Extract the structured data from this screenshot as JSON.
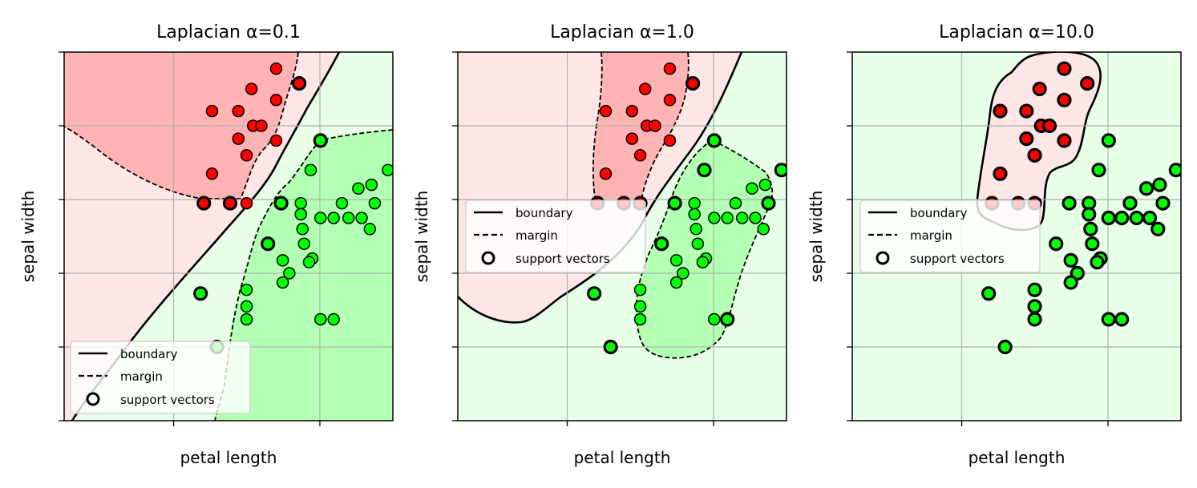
{
  "chart_data": [
    {
      "type": "scatter",
      "title": "Laplacian α=0.1",
      "xlabel": "petal length",
      "ylabel": "sepal width",
      "xlim": [
        0,
        1
      ],
      "ylim": [
        0,
        1
      ],
      "grid": true,
      "legend": {
        "position": "lower-left",
        "entries": [
          "boundary",
          "margin",
          "support vectors"
        ]
      },
      "series": [
        {
          "color": "#ff0000",
          "points": [
            [
              0.645,
              0.955
            ],
            [
              0.57,
              0.9
            ],
            [
              0.715,
              0.915
            ],
            [
              0.45,
              0.84
            ],
            [
              0.53,
              0.84
            ],
            [
              0.575,
              0.8
            ],
            [
              0.6,
              0.8
            ],
            [
              0.645,
              0.87
            ],
            [
              0.53,
              0.765
            ],
            [
              0.645,
              0.76
            ],
            [
              0.555,
              0.72
            ],
            [
              0.45,
              0.67
            ],
            [
              0.425,
              0.59
            ],
            [
              0.505,
              0.59
            ],
            [
              0.555,
              0.59
            ]
          ],
          "support_vectors": [
            [
              0.715,
              0.915
            ],
            [
              0.425,
              0.59
            ],
            [
              0.505,
              0.59
            ]
          ]
        },
        {
          "color": "#00ff00",
          "points": [
            [
              0.78,
              0.76
            ],
            [
              0.75,
              0.68
            ],
            [
              0.985,
              0.68
            ],
            [
              0.935,
              0.64
            ],
            [
              0.895,
              0.63
            ],
            [
              0.66,
              0.59
            ],
            [
              0.72,
              0.59
            ],
            [
              0.845,
              0.59
            ],
            [
              0.945,
              0.59
            ],
            [
              0.72,
              0.56
            ],
            [
              0.78,
              0.55
            ],
            [
              0.82,
              0.55
            ],
            [
              0.865,
              0.55
            ],
            [
              0.905,
              0.55
            ],
            [
              0.725,
              0.52
            ],
            [
              0.93,
              0.52
            ],
            [
              0.73,
              0.48
            ],
            [
              0.755,
              0.44
            ],
            [
              0.62,
              0.48
            ],
            [
              0.665,
              0.435
            ],
            [
              0.745,
              0.43
            ],
            [
              0.685,
              0.4
            ],
            [
              0.665,
              0.375
            ],
            [
              0.555,
              0.355
            ],
            [
              0.555,
              0.275
            ],
            [
              0.415,
              0.345
            ],
            [
              0.465,
              0.2
            ],
            [
              0.78,
              0.275
            ],
            [
              0.82,
              0.275
            ],
            [
              0.555,
              0.31
            ]
          ],
          "support_vectors": [
            [
              0.78,
              0.76
            ],
            [
              0.66,
              0.59
            ],
            [
              0.62,
              0.48
            ],
            [
              0.415,
              0.345
            ],
            [
              0.465,
              0.2
            ]
          ]
        }
      ]
    },
    {
      "type": "scatter",
      "title": "Laplacian α=1.0",
      "xlabel": "petal length",
      "ylabel": "sepal width",
      "xlim": [
        0,
        1
      ],
      "ylim": [
        0,
        1
      ],
      "grid": true,
      "legend": {
        "position": "center-left",
        "entries": [
          "boundary",
          "margin",
          "support vectors"
        ]
      },
      "series": [
        {
          "color": "#ff0000",
          "points": [
            [
              0.645,
              0.955
            ],
            [
              0.57,
              0.9
            ],
            [
              0.715,
              0.915
            ],
            [
              0.45,
              0.84
            ],
            [
              0.53,
              0.84
            ],
            [
              0.575,
              0.8
            ],
            [
              0.6,
              0.8
            ],
            [
              0.645,
              0.87
            ],
            [
              0.53,
              0.765
            ],
            [
              0.645,
              0.76
            ],
            [
              0.555,
              0.72
            ],
            [
              0.45,
              0.67
            ],
            [
              0.425,
              0.59
            ],
            [
              0.505,
              0.59
            ],
            [
              0.555,
              0.59
            ]
          ],
          "support_vectors": [
            [
              0.715,
              0.915
            ],
            [
              0.425,
              0.59
            ],
            [
              0.505,
              0.59
            ],
            [
              0.555,
              0.59
            ]
          ]
        },
        {
          "color": "#00ff00",
          "points": [
            [
              0.78,
              0.76
            ],
            [
              0.75,
              0.68
            ],
            [
              0.985,
              0.68
            ],
            [
              0.935,
              0.64
            ],
            [
              0.895,
              0.63
            ],
            [
              0.66,
              0.59
            ],
            [
              0.72,
              0.59
            ],
            [
              0.845,
              0.59
            ],
            [
              0.945,
              0.59
            ],
            [
              0.72,
              0.56
            ],
            [
              0.78,
              0.55
            ],
            [
              0.82,
              0.55
            ],
            [
              0.865,
              0.55
            ],
            [
              0.905,
              0.55
            ],
            [
              0.725,
              0.52
            ],
            [
              0.93,
              0.52
            ],
            [
              0.73,
              0.48
            ],
            [
              0.755,
              0.44
            ],
            [
              0.62,
              0.48
            ],
            [
              0.665,
              0.435
            ],
            [
              0.745,
              0.43
            ],
            [
              0.685,
              0.4
            ],
            [
              0.665,
              0.375
            ],
            [
              0.555,
              0.355
            ],
            [
              0.555,
              0.275
            ],
            [
              0.415,
              0.345
            ],
            [
              0.465,
              0.2
            ],
            [
              0.78,
              0.275
            ],
            [
              0.82,
              0.275
            ],
            [
              0.555,
              0.31
            ]
          ],
          "support_vectors": [
            [
              0.78,
              0.76
            ],
            [
              0.75,
              0.68
            ],
            [
              0.985,
              0.68
            ],
            [
              0.66,
              0.59
            ],
            [
              0.62,
              0.48
            ],
            [
              0.415,
              0.345
            ],
            [
              0.465,
              0.2
            ],
            [
              0.82,
              0.275
            ],
            [
              0.945,
              0.59
            ]
          ]
        }
      ]
    },
    {
      "type": "scatter",
      "title": "Laplacian α=10.0",
      "xlabel": "petal length",
      "ylabel": "sepal width",
      "xlim": [
        0,
        1
      ],
      "ylim": [
        0,
        1
      ],
      "grid": true,
      "legend": {
        "position": "center-left",
        "entries": [
          "boundary",
          "margin",
          "support vectors"
        ]
      },
      "series": [
        {
          "color": "#ff0000",
          "points": [
            [
              0.645,
              0.955
            ],
            [
              0.57,
              0.9
            ],
            [
              0.715,
              0.915
            ],
            [
              0.45,
              0.84
            ],
            [
              0.53,
              0.84
            ],
            [
              0.575,
              0.8
            ],
            [
              0.6,
              0.8
            ],
            [
              0.645,
              0.87
            ],
            [
              0.53,
              0.765
            ],
            [
              0.645,
              0.76
            ],
            [
              0.555,
              0.72
            ],
            [
              0.45,
              0.67
            ],
            [
              0.425,
              0.59
            ],
            [
              0.505,
              0.59
            ],
            [
              0.555,
              0.59
            ]
          ],
          "support_vectors": "all"
        },
        {
          "color": "#00ff00",
          "points": [
            [
              0.78,
              0.76
            ],
            [
              0.75,
              0.68
            ],
            [
              0.985,
              0.68
            ],
            [
              0.935,
              0.64
            ],
            [
              0.895,
              0.63
            ],
            [
              0.66,
              0.59
            ],
            [
              0.72,
              0.59
            ],
            [
              0.845,
              0.59
            ],
            [
              0.945,
              0.59
            ],
            [
              0.72,
              0.56
            ],
            [
              0.78,
              0.55
            ],
            [
              0.82,
              0.55
            ],
            [
              0.865,
              0.55
            ],
            [
              0.905,
              0.55
            ],
            [
              0.725,
              0.52
            ],
            [
              0.93,
              0.52
            ],
            [
              0.73,
              0.48
            ],
            [
              0.755,
              0.44
            ],
            [
              0.62,
              0.48
            ],
            [
              0.665,
              0.435
            ],
            [
              0.745,
              0.43
            ],
            [
              0.685,
              0.4
            ],
            [
              0.665,
              0.375
            ],
            [
              0.555,
              0.355
            ],
            [
              0.555,
              0.275
            ],
            [
              0.415,
              0.345
            ],
            [
              0.465,
              0.2
            ],
            [
              0.78,
              0.275
            ],
            [
              0.82,
              0.275
            ],
            [
              0.555,
              0.31
            ]
          ],
          "support_vectors": "all"
        }
      ]
    }
  ],
  "colors": {
    "red_points": "#ff0000",
    "green_points": "#00ff00",
    "red_region_strong": "#ffb3b3",
    "red_region_light": "#ffe6e6",
    "green_region_strong": "#b3ffb3",
    "green_region_light": "#e6ffe6",
    "grid": "#b0b0b0"
  }
}
